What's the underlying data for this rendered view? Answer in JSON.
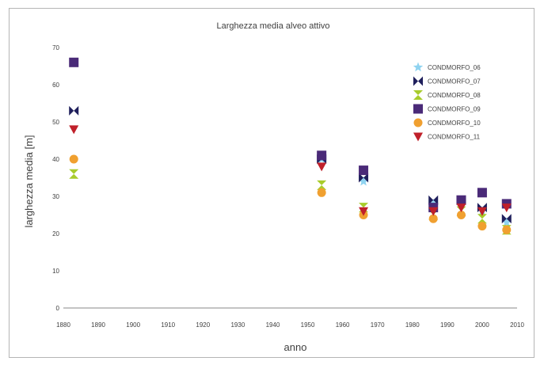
{
  "chart_data": {
    "type": "scatter",
    "title": "Larghezza media alveo attivo",
    "xlabel": "anno",
    "ylabel": "larghezza media [m]",
    "xlim": [
      1880,
      2010
    ],
    "ylim": [
      0,
      70
    ],
    "x_ticks": [
      "1880",
      "1890",
      "1900",
      "1910",
      "1920",
      "1930",
      "1940",
      "1950",
      "1960",
      "1970",
      "1980",
      "1990",
      "2000",
      "2010"
    ],
    "y_ticks": [
      "0",
      "10",
      "20",
      "30",
      "40",
      "50",
      "60",
      "70"
    ],
    "grid": false,
    "legend_position": "top-right",
    "series": [
      {
        "name": "CONDMORFO_06",
        "marker": "star",
        "color": "#8fd3f0",
        "points": [
          {
            "x": 1954,
            "y": 40
          },
          {
            "x": 1966,
            "y": 34
          },
          {
            "x": 1986,
            "y": 28
          },
          {
            "x": 1994,
            "y": 28
          },
          {
            "x": 2000,
            "y": 26
          },
          {
            "x": 2007,
            "y": 23
          }
        ]
      },
      {
        "name": "CONDMORFO_07",
        "marker": "bowtie",
        "color": "#1f1f5c",
        "points": [
          {
            "x": 1883,
            "y": 53
          },
          {
            "x": 1954,
            "y": 40
          },
          {
            "x": 1966,
            "y": 35
          },
          {
            "x": 1986,
            "y": 29
          },
          {
            "x": 1994,
            "y": 29
          },
          {
            "x": 2000,
            "y": 27
          },
          {
            "x": 2007,
            "y": 24
          }
        ]
      },
      {
        "name": "CONDMORFO_08",
        "marker": "hourglass",
        "color": "#a8cc2c",
        "points": [
          {
            "x": 1883,
            "y": 36
          },
          {
            "x": 1954,
            "y": 33
          },
          {
            "x": 1966,
            "y": 27
          },
          {
            "x": 1986,
            "y": 25
          },
          {
            "x": 1994,
            "y": 26
          },
          {
            "x": 2000,
            "y": 24
          },
          {
            "x": 2007,
            "y": 21
          }
        ]
      },
      {
        "name": "CONDMORFO_09",
        "marker": "square",
        "color": "#4a2a78",
        "points": [
          {
            "x": 1883,
            "y": 66
          },
          {
            "x": 1954,
            "y": 41
          },
          {
            "x": 1966,
            "y": 37
          },
          {
            "x": 1986,
            "y": 27
          },
          {
            "x": 1994,
            "y": 29
          },
          {
            "x": 2000,
            "y": 31
          },
          {
            "x": 2007,
            "y": 28
          }
        ]
      },
      {
        "name": "CONDMORFO_10",
        "marker": "circle",
        "color": "#f0a030",
        "points": [
          {
            "x": 1883,
            "y": 40
          },
          {
            "x": 1954,
            "y": 31
          },
          {
            "x": 1966,
            "y": 25
          },
          {
            "x": 1986,
            "y": 24
          },
          {
            "x": 1994,
            "y": 25
          },
          {
            "x": 2000,
            "y": 22
          },
          {
            "x": 2007,
            "y": 21
          }
        ]
      },
      {
        "name": "CONDMORFO_11",
        "marker": "triangle-down",
        "color": "#c0202a",
        "points": [
          {
            "x": 1883,
            "y": 48
          },
          {
            "x": 1954,
            "y": 38
          },
          {
            "x": 1966,
            "y": 26
          },
          {
            "x": 1986,
            "y": 26
          },
          {
            "x": 1994,
            "y": 27
          },
          {
            "x": 2000,
            "y": 26
          },
          {
            "x": 2007,
            "y": 27
          }
        ]
      }
    ]
  }
}
